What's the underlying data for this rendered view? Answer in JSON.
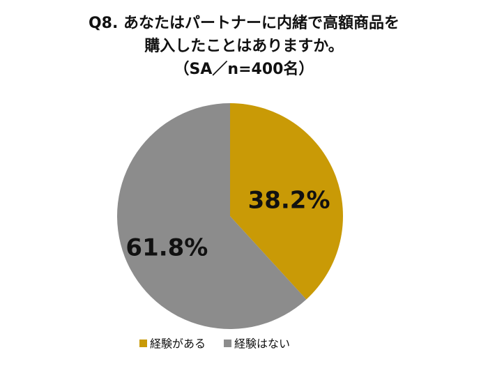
{
  "chart_data": {
    "type": "pie",
    "title": [
      "Q8. あなたはパートナーに内緒で高額商品を",
      "購入したことはありますか。",
      "（SA／n=400名）"
    ],
    "categories": [
      "経験がある",
      "経験はない"
    ],
    "values": [
      38.2,
      61.8
    ],
    "value_labels": [
      "38.2%",
      "61.8%"
    ],
    "colors": [
      "#c99a06",
      "#8c8c8c"
    ],
    "legend": "bottom"
  }
}
